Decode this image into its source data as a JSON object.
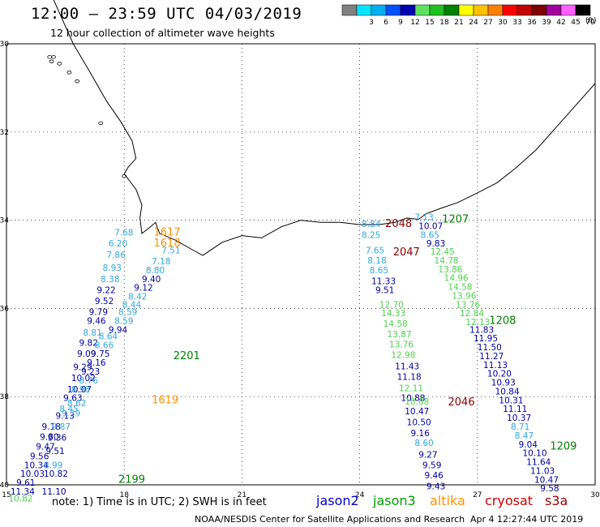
{
  "header": {
    "title": "12:00 – 23:59 UTC 04/03/2019",
    "subtitle": "12 hour collection of altimeter wave heights"
  },
  "color_scale": {
    "unit": "(ft)",
    "bins": [
      {
        "label": "",
        "color": "#808080"
      },
      {
        "label": "3",
        "color": "#00e5ff"
      },
      {
        "label": "6",
        "color": "#00b0f0"
      },
      {
        "label": "9",
        "color": "#0050ff"
      },
      {
        "label": "12",
        "color": "#0000b0"
      },
      {
        "label": "15",
        "color": "#60e060"
      },
      {
        "label": "18",
        "color": "#20c020"
      },
      {
        "label": "21",
        "color": "#008000"
      },
      {
        "label": "24",
        "color": "#ffff00"
      },
      {
        "label": "27",
        "color": "#ffc000"
      },
      {
        "label": "30",
        "color": "#ff8000"
      },
      {
        "label": "33",
        "color": "#ff0000"
      },
      {
        "label": "36",
        "color": "#c00000"
      },
      {
        "label": "39",
        "color": "#800000"
      },
      {
        "label": "42",
        "color": "#a000a0"
      },
      {
        "label": "45",
        "color": "#ff60ff"
      },
      {
        "label": "70",
        "color": "#000000"
      }
    ]
  },
  "map": {
    "lon_range": [
      15,
      30
    ],
    "lat_range": [
      -40,
      -30
    ],
    "lon_ticks": [
      "15",
      "18",
      "21",
      "24",
      "27",
      "30"
    ],
    "lat_ticks": [
      "-30",
      "-32",
      "-34",
      "-36",
      "-38",
      "-40"
    ],
    "colors": {
      "jason2": "#0000a0",
      "jason3_dark": "#008000",
      "jason3_light": "#50d050",
      "altika_light": "#30a8e0",
      "altika": "#ff9000",
      "cryosat": "#8b0000"
    },
    "pass_labels": [
      {
        "text": "1617",
        "lon": 18.75,
        "lat": -34.35,
        "sat": "altika"
      },
      {
        "text": "1618",
        "lon": 18.75,
        "lat": -34.6,
        "sat": "altika"
      },
      {
        "text": "2201",
        "lon": 19.25,
        "lat": -37.15,
        "sat": "jason3_dark"
      },
      {
        "text": "1619",
        "lon": 18.7,
        "lat": -38.15,
        "sat": "altika"
      },
      {
        "text": "2199",
        "lon": 17.85,
        "lat": -39.95,
        "sat": "jason3_dark"
      },
      {
        "text": "2048",
        "lon": 24.65,
        "lat": -34.15,
        "sat": "cryosat"
      },
      {
        "text": "1207",
        "lon": 26.1,
        "lat": -34.05,
        "sat": "jason3_dark"
      },
      {
        "text": "2047",
        "lon": 24.85,
        "lat": -34.8,
        "sat": "cryosat"
      },
      {
        "text": "1208",
        "lon": 27.3,
        "lat": -36.35,
        "sat": "jason3_dark"
      },
      {
        "text": "2046",
        "lon": 26.25,
        "lat": -38.2,
        "sat": "cryosat"
      },
      {
        "text": "1209",
        "lon": 28.85,
        "lat": -39.2,
        "sat": "jason3_dark"
      }
    ],
    "observations": [
      {
        "v": "7.68",
        "lon": 17.75,
        "lat": -34.35,
        "c": "altika_light"
      },
      {
        "v": "6.20",
        "lon": 17.6,
        "lat": -34.6,
        "c": "altika_light"
      },
      {
        "v": "7.51",
        "lon": 18.95,
        "lat": -34.75,
        "c": "altika_light"
      },
      {
        "v": "7.86",
        "lon": 17.55,
        "lat": -34.85,
        "c": "altika_light"
      },
      {
        "v": "7.18",
        "lon": 18.7,
        "lat": -35.0,
        "c": "altika_light"
      },
      {
        "v": "8.93",
        "lon": 17.45,
        "lat": -35.15,
        "c": "altika_light"
      },
      {
        "v": "8.80",
        "lon": 18.55,
        "lat": -35.2,
        "c": "altika_light"
      },
      {
        "v": "8.38",
        "lon": 17.4,
        "lat": -35.4,
        "c": "altika_light"
      },
      {
        "v": "9.40",
        "lon": 18.45,
        "lat": -35.4,
        "c": "jason2"
      },
      {
        "v": "9.22",
        "lon": 17.3,
        "lat": -35.65,
        "c": "jason2"
      },
      {
        "v": "9.12",
        "lon": 18.25,
        "lat": -35.6,
        "c": "jason2"
      },
      {
        "v": "8.42",
        "lon": 18.1,
        "lat": -35.8,
        "c": "altika_light"
      },
      {
        "v": "9.52",
        "lon": 17.25,
        "lat": -35.9,
        "c": "jason2"
      },
      {
        "v": "8.44",
        "lon": 17.95,
        "lat": -35.98,
        "c": "altika_light"
      },
      {
        "v": "9.79",
        "lon": 17.1,
        "lat": -36.15,
        "c": "jason2"
      },
      {
        "v": "8.59",
        "lon": 17.85,
        "lat": -36.15,
        "c": "altika_light"
      },
      {
        "v": "9.46",
        "lon": 17.05,
        "lat": -36.35,
        "c": "jason2"
      },
      {
        "v": "8.59",
        "lon": 17.75,
        "lat": -36.35,
        "c": "altika_light"
      },
      {
        "v": "9.94",
        "lon": 17.6,
        "lat": -36.55,
        "c": "jason2"
      },
      {
        "v": "8.81",
        "lon": 16.95,
        "lat": -36.62,
        "c": "altika_light"
      },
      {
        "v": "8.64",
        "lon": 17.35,
        "lat": -36.7,
        "c": "altika_light"
      },
      {
        "v": "9.82",
        "lon": 16.85,
        "lat": -36.85,
        "c": "jason2"
      },
      {
        "v": "8.66",
        "lon": 17.25,
        "lat": -36.9,
        "c": "altika_light"
      },
      {
        "v": "9.09",
        "lon": 16.8,
        "lat": -37.1,
        "c": "jason2"
      },
      {
        "v": "9.75",
        "lon": 17.15,
        "lat": -37.1,
        "c": "jason2"
      },
      {
        "v": "9.16",
        "lon": 17.05,
        "lat": -37.3,
        "c": "jason2"
      },
      {
        "v": "9.29",
        "lon": 16.7,
        "lat": -37.4,
        "c": "jason2"
      },
      {
        "v": "9.23",
        "lon": 16.9,
        "lat": -37.5,
        "c": "jason2"
      },
      {
        "v": "10.02",
        "lon": 16.65,
        "lat": -37.65,
        "c": "jason2"
      },
      {
        "v": "8.76",
        "lon": 16.85,
        "lat": -37.7,
        "c": "altika_light"
      },
      {
        "v": "10.07",
        "lon": 16.55,
        "lat": -37.9,
        "c": "jason2"
      },
      {
        "v": "8.98",
        "lon": 16.65,
        "lat": -37.9,
        "c": "altika_light"
      },
      {
        "v": "9.63",
        "lon": 16.45,
        "lat": -38.1,
        "c": "jason2"
      },
      {
        "v": "8.62",
        "lon": 16.55,
        "lat": -38.22,
        "c": "altika_light"
      },
      {
        "v": "8.45",
        "lon": 16.35,
        "lat": -38.35,
        "c": "altika_light"
      },
      {
        "v": "9.13",
        "lon": 16.25,
        "lat": -38.5,
        "c": "jason2"
      },
      {
        "v": "9.39",
        "lon": 16.4,
        "lat": -38.45,
        "c": "altika_light"
      },
      {
        "v": "9.18",
        "lon": 15.9,
        "lat": -38.75,
        "c": "jason2"
      },
      {
        "v": "9.87",
        "lon": 16.15,
        "lat": -38.75,
        "c": "altika_light"
      },
      {
        "v": "9.80",
        "lon": 15.85,
        "lat": -38.98,
        "c": "jason2"
      },
      {
        "v": "9.36",
        "lon": 16.05,
        "lat": -39.0,
        "c": "jason2"
      },
      {
        "v": "9.47",
        "lon": 15.75,
        "lat": -39.2,
        "c": "jason2"
      },
      {
        "v": "9.51",
        "lon": 16.0,
        "lat": -39.3,
        "c": "jason2"
      },
      {
        "v": "9.56",
        "lon": 15.6,
        "lat": -39.42,
        "c": "jason2"
      },
      {
        "v": "10.34",
        "lon": 15.45,
        "lat": -39.62,
        "c": "jason2"
      },
      {
        "v": "8.99",
        "lon": 15.95,
        "lat": -39.62,
        "c": "altika_light"
      },
      {
        "v": "10.03",
        "lon": 15.35,
        "lat": -39.82,
        "c": "jason2"
      },
      {
        "v": "10.82",
        "lon": 15.95,
        "lat": -39.82,
        "c": "jason2"
      },
      {
        "v": "9.61",
        "lon": 15.25,
        "lat": -40.02,
        "c": "jason2"
      },
      {
        "v": "11.34",
        "lon": 15.1,
        "lat": -40.22,
        "c": "jason2"
      },
      {
        "v": "11.10",
        "lon": 15.9,
        "lat": -40.22,
        "c": "jason2"
      },
      {
        "v": "10.82",
        "lon": 15.05,
        "lat": -40.38,
        "c": "jason3_light"
      },
      {
        "v": "8.84",
        "lon": 24.05,
        "lat": -34.15,
        "c": "altika_light"
      },
      {
        "v": "7.13",
        "lon": 25.4,
        "lat": -34.0,
        "c": "altika_light"
      },
      {
        "v": "10.07",
        "lon": 25.5,
        "lat": -34.2,
        "c": "jason2"
      },
      {
        "v": "8.25",
        "lon": 24.05,
        "lat": -34.4,
        "c": "altika_light"
      },
      {
        "v": "8.65",
        "lon": 25.55,
        "lat": -34.4,
        "c": "altika_light"
      },
      {
        "v": "9.83",
        "lon": 25.7,
        "lat": -34.6,
        "c": "jason2"
      },
      {
        "v": "7.65",
        "lon": 24.15,
        "lat": -34.75,
        "c": "altika_light"
      },
      {
        "v": "12.45",
        "lon": 25.8,
        "lat": -34.78,
        "c": "jason3_light"
      },
      {
        "v": "8.18",
        "lon": 24.2,
        "lat": -34.98,
        "c": "altika_light"
      },
      {
        "v": "14.78",
        "lon": 25.9,
        "lat": -34.98,
        "c": "jason3_light"
      },
      {
        "v": "8.65",
        "lon": 24.25,
        "lat": -35.2,
        "c": "altika_light"
      },
      {
        "v": "13.86",
        "lon": 26.0,
        "lat": -35.18,
        "c": "jason3_light"
      },
      {
        "v": "11.33",
        "lon": 24.3,
        "lat": -35.45,
        "c": "jason2"
      },
      {
        "v": "14.96",
        "lon": 26.15,
        "lat": -35.38,
        "c": "jason3_light"
      },
      {
        "v": "9.51",
        "lon": 24.4,
        "lat": -35.65,
        "c": "jason2"
      },
      {
        "v": "14.58",
        "lon": 26.25,
        "lat": -35.58,
        "c": "jason3_light"
      },
      {
        "v": "13.96",
        "lon": 26.35,
        "lat": -35.78,
        "c": "jason3_light"
      },
      {
        "v": "12.70",
        "lon": 24.5,
        "lat": -35.98,
        "c": "jason3_light"
      },
      {
        "v": "13.76",
        "lon": 26.45,
        "lat": -35.98,
        "c": "jason3_light"
      },
      {
        "v": "14.33",
        "lon": 24.55,
        "lat": -36.18,
        "c": "jason3_light"
      },
      {
        "v": "12.84",
        "lon": 26.55,
        "lat": -36.18,
        "c": "jason3_light"
      },
      {
        "v": "14.58",
        "lon": 24.6,
        "lat": -36.42,
        "c": "jason3_light"
      },
      {
        "v": "12.13",
        "lon": 26.7,
        "lat": -36.38,
        "c": "jason3_light"
      },
      {
        "v": "11.83",
        "lon": 26.8,
        "lat": -36.55,
        "c": "jason2"
      },
      {
        "v": "13.87",
        "lon": 24.7,
        "lat": -36.65,
        "c": "jason3_light"
      },
      {
        "v": "11.95",
        "lon": 26.9,
        "lat": -36.75,
        "c": "jason2"
      },
      {
        "v": "13.76",
        "lon": 24.75,
        "lat": -36.88,
        "c": "jason3_light"
      },
      {
        "v": "11.50",
        "lon": 27.0,
        "lat": -36.95,
        "c": "jason2"
      },
      {
        "v": "12.98",
        "lon": 24.8,
        "lat": -37.12,
        "c": "jason3_light"
      },
      {
        "v": "11.27",
        "lon": 27.05,
        "lat": -37.15,
        "c": "jason2"
      },
      {
        "v": "11.13",
        "lon": 27.15,
        "lat": -37.35,
        "c": "jason2"
      },
      {
        "v": "11.43",
        "lon": 24.9,
        "lat": -37.38,
        "c": "jason2"
      },
      {
        "v": "10.20",
        "lon": 27.25,
        "lat": -37.55,
        "c": "jason2"
      },
      {
        "v": "11.18",
        "lon": 24.95,
        "lat": -37.62,
        "c": "jason2"
      },
      {
        "v": "10.93",
        "lon": 27.35,
        "lat": -37.75,
        "c": "jason2"
      },
      {
        "v": "12.11",
        "lon": 25.0,
        "lat": -37.88,
        "c": "jason3_light"
      },
      {
        "v": "10.84",
        "lon": 27.45,
        "lat": -37.95,
        "c": "jason2"
      },
      {
        "v": "10.88",
        "lon": 25.05,
        "lat": -38.1,
        "c": "jason2"
      },
      {
        "v": "10.31",
        "lon": 27.55,
        "lat": -38.15,
        "c": "jason2"
      },
      {
        "v": "10.88",
        "lon": 25.15,
        "lat": -38.18,
        "c": "jason3_light"
      },
      {
        "v": "11.11",
        "lon": 27.65,
        "lat": -38.35,
        "c": "jason2"
      },
      {
        "v": "10.47",
        "lon": 25.15,
        "lat": -38.4,
        "c": "jason2"
      },
      {
        "v": "10.37",
        "lon": 27.75,
        "lat": -38.55,
        "c": "jason2"
      },
      {
        "v": "10.50",
        "lon": 25.2,
        "lat": -38.65,
        "c": "jason2"
      },
      {
        "v": "8.71",
        "lon": 27.85,
        "lat": -38.75,
        "c": "altika_light"
      },
      {
        "v": "9.16",
        "lon": 25.3,
        "lat": -38.9,
        "c": "jason2"
      },
      {
        "v": "8.47",
        "lon": 27.95,
        "lat": -38.95,
        "c": "altika_light"
      },
      {
        "v": "8.60",
        "lon": 25.4,
        "lat": -39.12,
        "c": "altika_light"
      },
      {
        "v": "9.04",
        "lon": 28.05,
        "lat": -39.15,
        "c": "jason2"
      },
      {
        "v": "10.10",
        "lon": 28.15,
        "lat": -39.35,
        "c": "jason2"
      },
      {
        "v": "9.27",
        "lon": 25.5,
        "lat": -39.38,
        "c": "jason2"
      },
      {
        "v": "11.64",
        "lon": 28.25,
        "lat": -39.55,
        "c": "jason2"
      },
      {
        "v": "9.59",
        "lon": 25.6,
        "lat": -39.62,
        "c": "jason2"
      },
      {
        "v": "11.03",
        "lon": 28.35,
        "lat": -39.75,
        "c": "jason2"
      },
      {
        "v": "9.46",
        "lon": 25.65,
        "lat": -39.85,
        "c": "jason2"
      },
      {
        "v": "10.47",
        "lon": 28.45,
        "lat": -39.95,
        "c": "jason2"
      },
      {
        "v": "9.43",
        "lon": 25.7,
        "lat": -40.1,
        "c": "jason2"
      },
      {
        "v": "9.58",
        "lon": 28.6,
        "lat": -40.15,
        "c": "jason2"
      }
    ]
  },
  "footer": {
    "note": "note:  1) Time is in UTC;  2) SWH is in feet",
    "satellites": [
      {
        "name": "jason2",
        "color": "#0000d0"
      },
      {
        "name": "jason3",
        "color": "#00a000"
      },
      {
        "name": "altika",
        "color": "#ff9000"
      },
      {
        "name": "cryosat",
        "color": "#d00000"
      },
      {
        "name": "s3a",
        "color": "#a00000"
      }
    ],
    "credit": "NOAA/NESDIS Center for Satellite Applications and Research",
    "generated": "Apr  4 12:27:44 UTC 2019"
  }
}
